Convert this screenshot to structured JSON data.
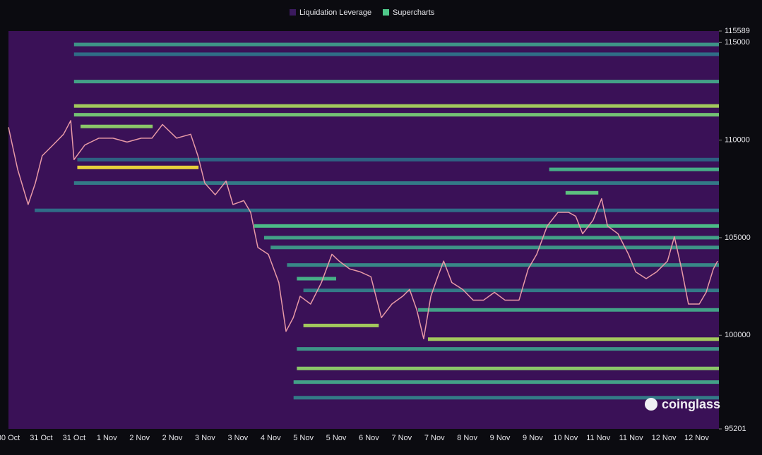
{
  "chart_data": {
    "type": "heatmap",
    "legend": [
      {
        "name": "Liquidation Leverage",
        "color": "#3b1a5e"
      },
      {
        "name": "Supercharts",
        "color": "#4fc98a"
      }
    ],
    "watermark": "coinglass",
    "categories": [
      "30 Oct",
      "31 Oct",
      "31 Oct",
      "1 Nov",
      "2 Nov",
      "2 Nov",
      "3 Nov",
      "3 Nov",
      "4 Nov",
      "5 Nov",
      "5 Nov",
      "6 Nov",
      "7 Nov",
      "7 Nov",
      "8 Nov",
      "9 Nov",
      "9 Nov",
      "10 Nov",
      "11 Nov",
      "11 Nov",
      "12 Nov",
      "12 Nov"
    ],
    "xlim": [
      0,
      21.68
    ],
    "ylim": [
      95201,
      115589
    ],
    "yticks": [
      95201,
      100000,
      105000,
      110000,
      115000,
      115589
    ],
    "background": "#3a1157",
    "band_colors": [
      "#3a1157",
      "#2c6f8a",
      "#4fc98a",
      "#f0dc3a"
    ],
    "bands": {
      "price": [
        114900,
        114400,
        113000,
        111750,
        111300,
        110700,
        109000,
        108600,
        108500,
        107800,
        107300,
        106400,
        105600,
        105000,
        104500,
        103600,
        102900,
        102300,
        101300,
        100500,
        99800,
        99300,
        98300,
        97600,
        96800
      ],
      "start": [
        2.0,
        2.0,
        2.0,
        2.0,
        2.0,
        2.2,
        2.1,
        2.1,
        16.5,
        2.0,
        17.0,
        0.8,
        7.5,
        7.8,
        8.0,
        8.5,
        8.8,
        9.0,
        12.5,
        9.0,
        12.8,
        8.8,
        8.8,
        8.7,
        8.7
      ],
      "end": [
        21.68,
        21.68,
        21.68,
        21.68,
        21.68,
        4.4,
        21.68,
        5.8,
        21.68,
        21.68,
        18.0,
        21.68,
        21.68,
        21.68,
        21.68,
        21.68,
        10.0,
        21.68,
        21.68,
        11.3,
        21.68,
        21.68,
        21.68,
        21.68,
        21.68
      ],
      "intensity": [
        0.5,
        0.35,
        0.55,
        0.85,
        0.75,
        0.8,
        0.3,
        1.0,
        0.6,
        0.4,
        0.7,
        0.35,
        0.65,
        0.55,
        0.5,
        0.45,
        0.6,
        0.4,
        0.55,
        0.85,
        0.85,
        0.5,
        0.8,
        0.55,
        0.4
      ]
    },
    "price": {
      "color": "#e89aa6",
      "x": [
        0,
        0.28,
        0.6,
        0.82,
        1.03,
        1.36,
        1.68,
        1.9,
        2.0,
        2.33,
        2.76,
        3.19,
        3.62,
        4.05,
        4.38,
        4.7,
        5.13,
        5.56,
        5.78,
        5.99,
        6.31,
        6.64,
        6.85,
        7.18,
        7.39,
        7.61,
        7.93,
        8.25,
        8.47,
        8.69,
        8.9,
        9.22,
        9.55,
        9.87,
        10.09,
        10.41,
        10.73,
        11.06,
        11.38,
        11.7,
        12.03,
        12.24,
        12.46,
        12.67,
        12.89,
        13.1,
        13.28,
        13.53,
        13.86,
        14.18,
        14.5,
        14.83,
        15.15,
        15.58,
        15.86,
        16.12,
        16.44,
        16.77,
        17.09,
        17.31,
        17.52,
        17.84,
        18.1,
        18.28,
        18.6,
        18.92,
        19.14,
        19.46,
        19.78,
        20.11,
        20.32,
        20.54,
        20.75,
        21.08,
        21.29,
        21.51,
        21.64
      ],
      "values": [
        110660,
        108500,
        106700,
        107800,
        109200,
        109750,
        110300,
        111000,
        109000,
        109750,
        110100,
        110100,
        109900,
        110100,
        110100,
        110800,
        110100,
        110300,
        109200,
        107800,
        107200,
        107900,
        106700,
        106900,
        106300,
        104500,
        104150,
        102700,
        100200,
        100900,
        102000,
        101600,
        102700,
        104150,
        103800,
        103400,
        103250,
        103000,
        100900,
        101600,
        102000,
        102350,
        101300,
        99820,
        102000,
        103000,
        103800,
        102700,
        102350,
        101800,
        101800,
        102200,
        101800,
        101800,
        103400,
        104150,
        105600,
        106300,
        106300,
        106100,
        105200,
        105900,
        107000,
        105600,
        105200,
        104150,
        103250,
        102900,
        103250,
        103800,
        105050,
        103400,
        101600,
        101600,
        102200,
        103400,
        103800
      ]
    }
  }
}
